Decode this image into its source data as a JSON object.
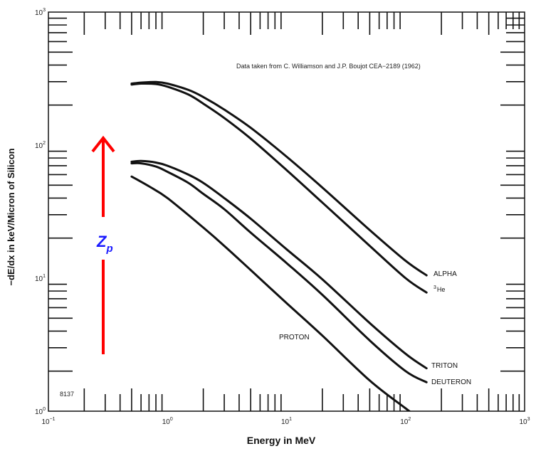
{
  "chart_data": {
    "type": "line",
    "title": "",
    "xlabel": "Energy in MeV",
    "ylabel": "−dE/dx in keV/Micron of Silicon",
    "x_scale": "log",
    "y_scale": "log",
    "xlim": [
      0.1,
      1000
    ],
    "ylim": [
      1,
      1000
    ],
    "grid": false,
    "x_ticks": [
      {
        "base": "10",
        "exp": "−1"
      },
      {
        "base": "10",
        "exp": "0"
      },
      {
        "base": "10",
        "exp": "1"
      },
      {
        "base": "10",
        "exp": "2"
      },
      {
        "base": "10",
        "exp": "3"
      }
    ],
    "y_ticks": [
      {
        "base": "10",
        "exp": "0"
      },
      {
        "base": "10",
        "exp": "1"
      },
      {
        "base": "10",
        "exp": "2"
      },
      {
        "base": "10",
        "exp": "3"
      }
    ],
    "series": [
      {
        "name": "ALPHA",
        "x": [
          0.5,
          0.6,
          0.8,
          1.0,
          1.5,
          2,
          3,
          5,
          10,
          20,
          50,
          100,
          150
        ],
        "y": [
          290,
          295,
          298,
          290,
          260,
          230,
          185,
          135,
          82,
          48,
          23,
          13.5,
          10.5
        ]
      },
      {
        "name": "³He",
        "x": [
          0.5,
          0.6,
          0.8,
          1.0,
          1.5,
          2,
          3,
          5,
          10,
          20,
          50,
          100,
          150
        ],
        "y": [
          285,
          290,
          288,
          275,
          240,
          205,
          160,
          112,
          65,
          37,
          17.5,
          10,
          7.8
        ]
      },
      {
        "name": "TRITON",
        "x": [
          0.5,
          0.6,
          0.8,
          1.0,
          1.5,
          2,
          3,
          5,
          10,
          20,
          50,
          100,
          150
        ],
        "y": [
          75,
          76,
          74,
          70,
          60,
          52,
          40,
          28,
          16.5,
          9.8,
          4.6,
          2.7,
          2.1
        ]
      },
      {
        "name": "DEUTERON",
        "x": [
          0.5,
          0.6,
          0.8,
          1.0,
          1.5,
          2,
          3,
          5,
          10,
          20,
          50,
          100,
          150
        ],
        "y": [
          73,
          73,
          69,
          63,
          52,
          43,
          33,
          22,
          13,
          7.5,
          3.4,
          2.0,
          1.65
        ]
      },
      {
        "name": "PROTON",
        "x": [
          0.5,
          0.7,
          1.0,
          2,
          3,
          5,
          10,
          20,
          50,
          100,
          150
        ],
        "y": [
          58,
          49,
          40,
          24,
          17.5,
          11.5,
          6.5,
          3.7,
          1.7,
          1.05,
          0.8
        ]
      }
    ],
    "labels": {
      "alpha": "ALPHA",
      "he3_sup": "3",
      "he3_base": "He",
      "triton": "TRITON",
      "deuteron": "DEUTERON",
      "proton": "PROTON"
    },
    "annotations": {
      "source": "Data taken from C. Williamson and J.P. Boujot CEA−2189 (1962)",
      "figure_code": "8137",
      "arrow_label_base": "Z",
      "arrow_label_sub": "p",
      "arrow_color": "#ff0000",
      "arrow_label_color": "#1a1aff"
    }
  }
}
